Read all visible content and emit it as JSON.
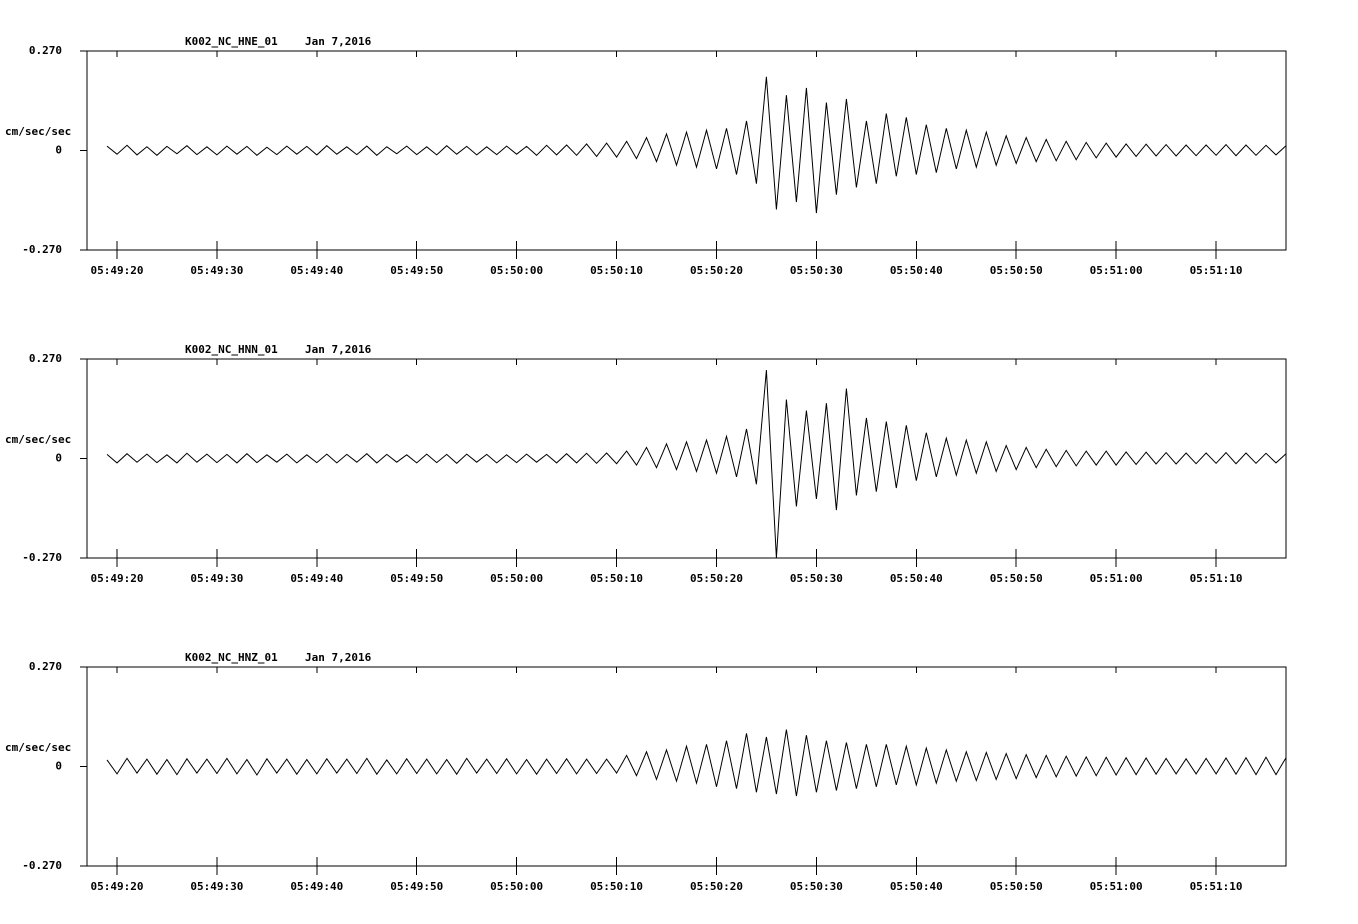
{
  "chart_data": [
    {
      "type": "line",
      "title": "K002_NC_HNE_01",
      "subtitle": "Jan 7,2016",
      "ylabel": "cm/sec/sec",
      "color": "#000000",
      "ylim": [
        -0.27,
        0.27
      ],
      "yticks": [
        {
          "value": 0.27,
          "label": "0.270"
        },
        0,
        {
          "value": -0.27,
          "label": "-0.270"
        }
      ],
      "xlim": [
        "05:49:17",
        "05:51:17"
      ],
      "xticks": [
        "05:49:20",
        "05:49:30",
        "05:49:40",
        "05:49:50",
        "05:50:00",
        "05:50:10",
        "05:50:20",
        "05:50:30",
        "05:50:40",
        "05:50:50",
        "05:51:00",
        "05:51:10"
      ],
      "x": [
        "05:49:19",
        "05:49:20",
        "05:49:21",
        "05:49:22",
        "05:49:23",
        "05:49:24",
        "05:49:25",
        "05:49:26",
        "05:49:27",
        "05:49:28",
        "05:49:29",
        "05:49:30",
        "05:49:31",
        "05:49:32",
        "05:49:33",
        "05:49:34",
        "05:49:35",
        "05:49:36",
        "05:49:37",
        "05:49:38",
        "05:49:39",
        "05:49:40",
        "05:49:41",
        "05:49:42",
        "05:49:43",
        "05:49:44",
        "05:49:45",
        "05:49:46",
        "05:49:47",
        "05:49:48",
        "05:49:49",
        "05:49:50",
        "05:49:51",
        "05:49:52",
        "05:49:53",
        "05:49:54",
        "05:49:55",
        "05:49:56",
        "05:49:57",
        "05:49:58",
        "05:49:59",
        "05:50:00",
        "05:50:01",
        "05:50:02",
        "05:50:03",
        "05:50:04",
        "05:50:05",
        "05:50:06",
        "05:50:07",
        "05:50:08",
        "05:50:09",
        "05:50:10",
        "05:50:11",
        "05:50:12",
        "05:50:13",
        "05:50:14",
        "05:50:15",
        "05:50:16",
        "05:50:17",
        "05:50:18",
        "05:50:19",
        "05:50:20",
        "05:50:21",
        "05:50:22",
        "05:50:23",
        "05:50:24",
        "05:50:25",
        "05:50:26",
        "05:50:27",
        "05:50:28",
        "05:50:29",
        "05:50:30",
        "05:50:31",
        "05:50:32",
        "05:50:33",
        "05:50:34",
        "05:50:35",
        "05:50:36",
        "05:50:37",
        "05:50:38",
        "05:50:39",
        "05:50:40",
        "05:50:41",
        "05:50:42",
        "05:50:43",
        "05:50:44",
        "05:50:45",
        "05:50:46",
        "05:50:47",
        "05:50:48",
        "05:50:49",
        "05:50:50",
        "05:50:51",
        "05:50:52",
        "05:50:53",
        "05:50:54",
        "05:50:55",
        "05:50:56",
        "05:50:57",
        "05:50:58",
        "05:50:59",
        "05:51:00",
        "05:51:01",
        "05:51:02",
        "05:51:03",
        "05:51:04",
        "05:51:05",
        "05:51:06",
        "05:51:07",
        "05:51:08",
        "05:51:09",
        "05:51:10",
        "05:51:11",
        "05:51:12",
        "05:51:13",
        "05:51:14",
        "05:51:15",
        "05:51:16",
        "05:51:17"
      ],
      "values": [
        0.012,
        -0.01,
        0.014,
        -0.012,
        0.01,
        -0.013,
        0.011,
        -0.009,
        0.013,
        -0.011,
        0.01,
        -0.012,
        0.012,
        -0.01,
        0.011,
        -0.013,
        0.009,
        -0.011,
        0.012,
        -0.01,
        0.011,
        -0.012,
        0.013,
        -0.01,
        0.01,
        -0.011,
        0.012,
        -0.013,
        0.01,
        -0.009,
        0.012,
        -0.011,
        0.01,
        -0.012,
        0.013,
        -0.01,
        0.011,
        -0.012,
        0.01,
        -0.011,
        0.012,
        -0.01,
        0.011,
        -0.013,
        0.014,
        -0.012,
        0.015,
        -0.013,
        0.018,
        -0.016,
        0.02,
        -0.018,
        0.025,
        -0.022,
        0.035,
        -0.03,
        0.045,
        -0.04,
        0.05,
        -0.045,
        0.055,
        -0.05,
        0.06,
        -0.065,
        0.08,
        -0.09,
        0.2,
        -0.16,
        0.15,
        -0.14,
        0.17,
        -0.17,
        0.13,
        -0.12,
        0.14,
        -0.1,
        0.08,
        -0.09,
        0.1,
        -0.07,
        0.09,
        -0.065,
        0.07,
        -0.06,
        0.06,
        -0.05,
        0.055,
        -0.045,
        0.05,
        -0.04,
        0.04,
        -0.035,
        0.035,
        -0.03,
        0.03,
        -0.028,
        0.025,
        -0.025,
        0.022,
        -0.02,
        0.02,
        -0.018,
        0.018,
        -0.016,
        0.017,
        -0.015,
        0.016,
        -0.015,
        0.015,
        -0.014,
        0.015,
        -0.013,
        0.016,
        -0.014,
        0.015,
        -0.013,
        0.014,
        -0.012,
        0.013
      ]
    },
    {
      "type": "line",
      "title": "K002_NC_HNN_01",
      "subtitle": "Jan 7,2016",
      "ylabel": "cm/sec/sec",
      "color": "#000000",
      "ylim": [
        -0.27,
        0.27
      ],
      "yticks": [
        {
          "value": 0.27,
          "label": "0.270"
        },
        0,
        {
          "value": -0.27,
          "label": "-0.270"
        }
      ],
      "xlim": [
        "05:49:17",
        "05:51:17"
      ],
      "xticks": [
        "05:49:20",
        "05:49:30",
        "05:49:40",
        "05:49:50",
        "05:50:00",
        "05:50:10",
        "05:50:20",
        "05:50:30",
        "05:50:40",
        "05:50:50",
        "05:51:00",
        "05:51:10"
      ],
      "x": [
        "05:49:19",
        "05:49:20",
        "05:49:21",
        "05:49:22",
        "05:49:23",
        "05:49:24",
        "05:49:25",
        "05:49:26",
        "05:49:27",
        "05:49:28",
        "05:49:29",
        "05:49:30",
        "05:49:31",
        "05:49:32",
        "05:49:33",
        "05:49:34",
        "05:49:35",
        "05:49:36",
        "05:49:37",
        "05:49:38",
        "05:49:39",
        "05:49:40",
        "05:49:41",
        "05:49:42",
        "05:49:43",
        "05:49:44",
        "05:49:45",
        "05:49:46",
        "05:49:47",
        "05:49:48",
        "05:49:49",
        "05:49:50",
        "05:49:51",
        "05:49:52",
        "05:49:53",
        "05:49:54",
        "05:49:55",
        "05:49:56",
        "05:49:57",
        "05:49:58",
        "05:49:59",
        "05:50:00",
        "05:50:01",
        "05:50:02",
        "05:50:03",
        "05:50:04",
        "05:50:05",
        "05:50:06",
        "05:50:07",
        "05:50:08",
        "05:50:09",
        "05:50:10",
        "05:50:11",
        "05:50:12",
        "05:50:13",
        "05:50:14",
        "05:50:15",
        "05:50:16",
        "05:50:17",
        "05:50:18",
        "05:50:19",
        "05:50:20",
        "05:50:21",
        "05:50:22",
        "05:50:23",
        "05:50:24",
        "05:50:25",
        "05:50:26",
        "05:50:27",
        "05:50:28",
        "05:50:29",
        "05:50:30",
        "05:50:31",
        "05:50:32",
        "05:50:33",
        "05:50:34",
        "05:50:35",
        "05:50:36",
        "05:50:37",
        "05:50:38",
        "05:50:39",
        "05:50:40",
        "05:50:41",
        "05:50:42",
        "05:50:43",
        "05:50:44",
        "05:50:45",
        "05:50:46",
        "05:50:47",
        "05:50:48",
        "05:50:49",
        "05:50:50",
        "05:50:51",
        "05:50:52",
        "05:50:53",
        "05:50:54",
        "05:50:55",
        "05:50:56",
        "05:50:57",
        "05:50:58",
        "05:50:59",
        "05:51:00",
        "05:51:01",
        "05:51:02",
        "05:51:03",
        "05:51:04",
        "05:51:05",
        "05:51:06",
        "05:51:07",
        "05:51:08",
        "05:51:09",
        "05:51:10",
        "05:51:11",
        "05:51:12",
        "05:51:13",
        "05:51:14",
        "05:51:15",
        "05:51:16",
        "05:51:17"
      ],
      "values": [
        0.011,
        -0.012,
        0.013,
        -0.01,
        0.012,
        -0.011,
        0.01,
        -0.012,
        0.014,
        -0.01,
        0.012,
        -0.011,
        0.011,
        -0.012,
        0.013,
        -0.011,
        0.01,
        -0.01,
        0.012,
        -0.012,
        0.01,
        -0.011,
        0.012,
        -0.012,
        0.011,
        -0.01,
        0.013,
        -0.012,
        0.011,
        -0.01,
        0.01,
        -0.012,
        0.012,
        -0.011,
        0.011,
        -0.013,
        0.012,
        -0.01,
        0.011,
        -0.012,
        0.01,
        -0.011,
        0.012,
        -0.01,
        0.011,
        -0.012,
        0.013,
        -0.012,
        0.014,
        -0.013,
        0.015,
        -0.014,
        0.02,
        -0.018,
        0.03,
        -0.025,
        0.04,
        -0.03,
        0.045,
        -0.035,
        0.05,
        -0.04,
        0.06,
        -0.05,
        0.08,
        -0.07,
        0.24,
        -0.27,
        0.16,
        -0.13,
        0.13,
        -0.11,
        0.15,
        -0.14,
        0.19,
        -0.1,
        0.11,
        -0.09,
        0.1,
        -0.08,
        0.09,
        -0.06,
        0.07,
        -0.05,
        0.055,
        -0.045,
        0.05,
        -0.04,
        0.045,
        -0.035,
        0.035,
        -0.03,
        0.03,
        -0.025,
        0.025,
        -0.022,
        0.022,
        -0.02,
        0.02,
        -0.018,
        0.02,
        -0.018,
        0.018,
        -0.016,
        0.017,
        -0.015,
        0.016,
        -0.015,
        0.015,
        -0.014,
        0.015,
        -0.013,
        0.016,
        -0.014,
        0.015,
        -0.013,
        0.014,
        -0.012,
        0.013
      ]
    },
    {
      "type": "line",
      "title": "K002_NC_HNZ_01",
      "subtitle": "Jan 7,2016",
      "ylabel": "cm/sec/sec",
      "color": "#000000",
      "ylim": [
        -0.27,
        0.27
      ],
      "yticks": [
        {
          "value": 0.27,
          "label": "0.270"
        },
        0,
        {
          "value": -0.27,
          "label": "-0.270"
        }
      ],
      "xlim": [
        "05:49:17",
        "05:51:17"
      ],
      "xticks": [
        "05:49:20",
        "05:49:30",
        "05:49:40",
        "05:49:50",
        "05:50:00",
        "05:50:10",
        "05:50:20",
        "05:50:30",
        "05:50:40",
        "05:50:50",
        "05:51:00",
        "05:51:10"
      ],
      "x": [
        "05:49:19",
        "05:49:20",
        "05:49:21",
        "05:49:22",
        "05:49:23",
        "05:49:24",
        "05:49:25",
        "05:49:26",
        "05:49:27",
        "05:49:28",
        "05:49:29",
        "05:49:30",
        "05:49:31",
        "05:49:32",
        "05:49:33",
        "05:49:34",
        "05:49:35",
        "05:49:36",
        "05:49:37",
        "05:49:38",
        "05:49:39",
        "05:49:40",
        "05:49:41",
        "05:49:42",
        "05:49:43",
        "05:49:44",
        "05:49:45",
        "05:49:46",
        "05:49:47",
        "05:49:48",
        "05:49:49",
        "05:49:50",
        "05:49:51",
        "05:49:52",
        "05:49:53",
        "05:49:54",
        "05:49:55",
        "05:49:56",
        "05:49:57",
        "05:49:58",
        "05:49:59",
        "05:50:00",
        "05:50:01",
        "05:50:02",
        "05:50:03",
        "05:50:04",
        "05:50:05",
        "05:50:06",
        "05:50:07",
        "05:50:08",
        "05:50:09",
        "05:50:10",
        "05:50:11",
        "05:50:12",
        "05:50:13",
        "05:50:14",
        "05:50:15",
        "05:50:16",
        "05:50:17",
        "05:50:18",
        "05:50:19",
        "05:50:20",
        "05:50:21",
        "05:50:22",
        "05:50:23",
        "05:50:24",
        "05:50:25",
        "05:50:26",
        "05:50:27",
        "05:50:28",
        "05:50:29",
        "05:50:30",
        "05:50:31",
        "05:50:32",
        "05:50:33",
        "05:50:34",
        "05:50:35",
        "05:50:36",
        "05:50:37",
        "05:50:38",
        "05:50:39",
        "05:50:40",
        "05:50:41",
        "05:50:42",
        "05:50:43",
        "05:50:44",
        "05:50:45",
        "05:50:46",
        "05:50:47",
        "05:50:48",
        "05:50:49",
        "05:50:50",
        "05:50:51",
        "05:50:52",
        "05:50:53",
        "05:50:54",
        "05:50:55",
        "05:50:56",
        "05:50:57",
        "05:50:58",
        "05:50:59",
        "05:51:00",
        "05:51:01",
        "05:51:02",
        "05:51:03",
        "05:51:04",
        "05:51:05",
        "05:51:06",
        "05:51:07",
        "05:51:08",
        "05:51:09",
        "05:51:10",
        "05:51:11",
        "05:51:12",
        "05:51:13",
        "05:51:14",
        "05:51:15",
        "05:51:16",
        "05:51:17"
      ],
      "values": [
        0.018,
        -0.02,
        0.022,
        -0.018,
        0.02,
        -0.021,
        0.019,
        -0.022,
        0.021,
        -0.018,
        0.02,
        -0.019,
        0.022,
        -0.02,
        0.019,
        -0.023,
        0.021,
        -0.018,
        0.02,
        -0.021,
        0.019,
        -0.02,
        0.021,
        -0.018,
        0.02,
        -0.019,
        0.022,
        -0.021,
        0.018,
        -0.02,
        0.021,
        -0.019,
        0.02,
        -0.02,
        0.019,
        -0.021,
        0.022,
        -0.018,
        0.02,
        -0.019,
        0.021,
        -0.02,
        0.019,
        -0.021,
        0.02,
        -0.019,
        0.021,
        -0.02,
        0.02,
        -0.019,
        0.02,
        -0.018,
        0.03,
        -0.025,
        0.04,
        -0.035,
        0.045,
        -0.04,
        0.055,
        -0.045,
        0.06,
        -0.055,
        0.07,
        -0.06,
        0.09,
        -0.07,
        0.08,
        -0.075,
        0.1,
        -0.08,
        0.085,
        -0.07,
        0.07,
        -0.065,
        0.065,
        -0.06,
        0.06,
        -0.055,
        0.06,
        -0.05,
        0.055,
        -0.05,
        0.05,
        -0.045,
        0.045,
        -0.04,
        0.04,
        -0.038,
        0.038,
        -0.035,
        0.035,
        -0.033,
        0.032,
        -0.03,
        0.03,
        -0.028,
        0.028,
        -0.026,
        0.026,
        -0.025,
        0.025,
        -0.023,
        0.024,
        -0.022,
        0.023,
        -0.021,
        0.022,
        -0.02,
        0.021,
        -0.02,
        0.022,
        -0.02,
        0.023,
        -0.021,
        0.024,
        -0.022,
        0.025,
        -0.022,
        0.024
      ]
    }
  ]
}
